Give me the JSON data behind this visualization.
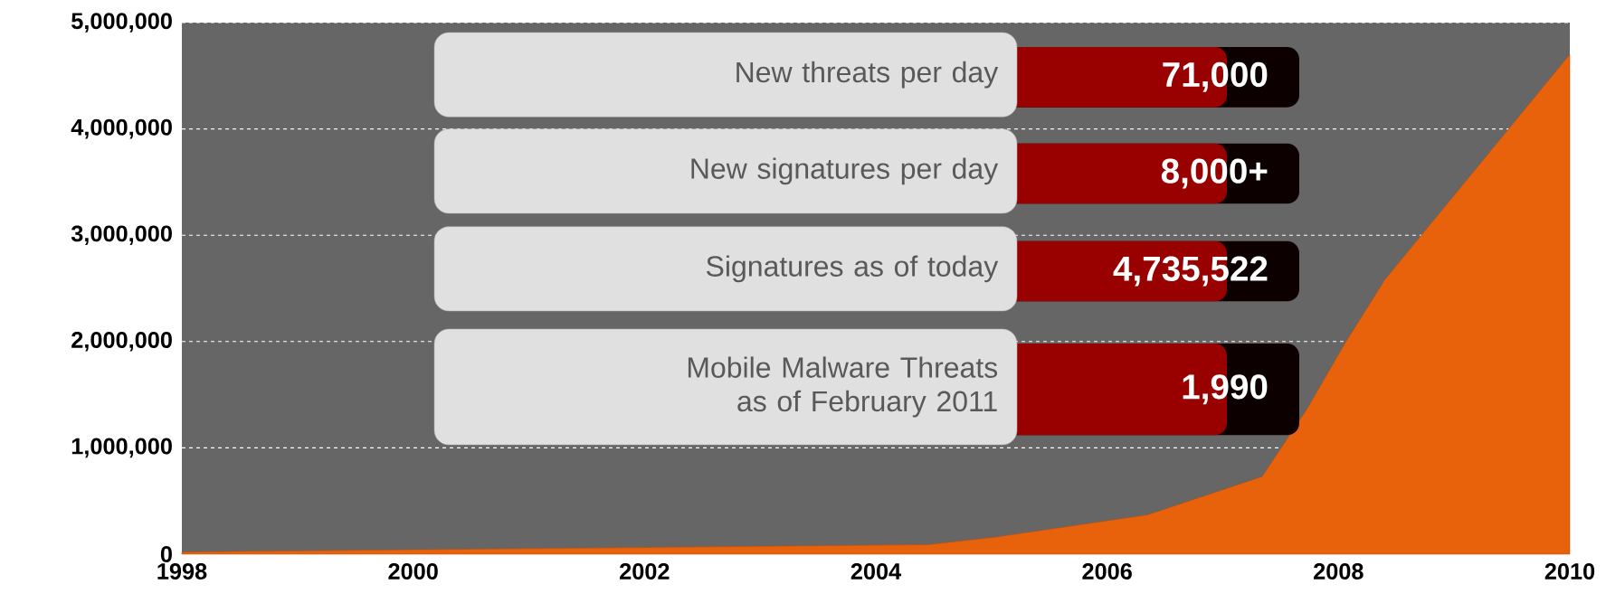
{
  "chart_data": {
    "type": "area",
    "x": [
      1998,
      2004.45,
      2005.03,
      2006.35,
      2007.34,
      2007.73,
      2008.06,
      2008.4,
      2010
    ],
    "values": [
      20000,
      90000,
      160000,
      370000,
      730000,
      1370000,
      1990000,
      2580000,
      4700000
    ],
    "color": "#e8620c",
    "xlim": [
      1998,
      2010
    ],
    "xticks": [
      1998,
      2000,
      2002,
      2004,
      2006,
      2008,
      2010
    ],
    "ylim": [
      0,
      5000000
    ],
    "yticks": [
      {
        "value": 0,
        "label": "0"
      },
      {
        "value": 1000000,
        "label": "1,000,000"
      },
      {
        "value": 2000000,
        "label": "2,000,000"
      },
      {
        "value": 3000000,
        "label": "3,000,000"
      },
      {
        "value": 4000000,
        "label": "4,000,000"
      },
      {
        "value": 5000000,
        "label": "5,000,000"
      }
    ],
    "grid": "y",
    "annotations": [
      "New threats per day",
      "71,000",
      "New signatures per day",
      "8,000+",
      "Signatures as of today",
      "4,735,522",
      "Mobile Malware Threats as of February 2011",
      "1,990"
    ]
  }
}
